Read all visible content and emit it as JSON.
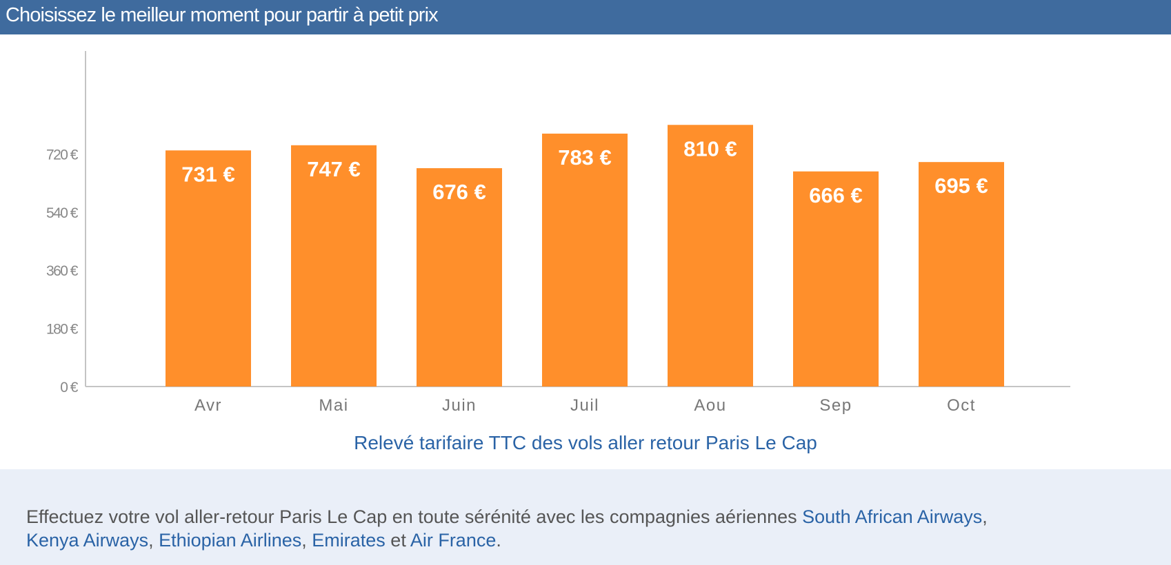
{
  "header": {
    "title": "Choisissez le meilleur moment pour partir à petit prix"
  },
  "colors": {
    "header_bg": "#3f6b9e",
    "bar": "#ff8f2b",
    "caption": "#2a63a6",
    "footer_bg": "#eaeff8",
    "link": "#2a63a6"
  },
  "chart_data": {
    "type": "bar",
    "categories": [
      "Avr",
      "Mai",
      "Juin",
      "Juil",
      "Aou",
      "Sep",
      "Oct"
    ],
    "values": [
      731,
      747,
      676,
      783,
      810,
      666,
      695
    ],
    "data_labels": [
      "731 €",
      "747 €",
      "676 €",
      "783 €",
      "810 €",
      "666 €",
      "695 €"
    ],
    "y_ticks": [
      0,
      180,
      360,
      540,
      720
    ],
    "y_tick_labels": [
      "0 €",
      "180 €",
      "360 €",
      "540 €",
      "720 €"
    ],
    "ylim": [
      0,
      1026
    ],
    "grid": false,
    "legend": "none",
    "caption": "Relevé tarifaire TTC des vols aller retour Paris Le Cap"
  },
  "footer": {
    "text_before": "Effectuez votre vol aller-retour Paris Le Cap en toute sérénité avec les compagnies aériennes ",
    "airline_1": "South African Airways",
    "sep_1": ",",
    "airline_2": "Kenya Airways",
    "sep_2": ", ",
    "airline_3": "Ethiopian Airlines",
    "sep_3": ", ",
    "airline_4": "Emirates",
    "conj": " et ",
    "airline_5": "Air France",
    "end": "."
  }
}
